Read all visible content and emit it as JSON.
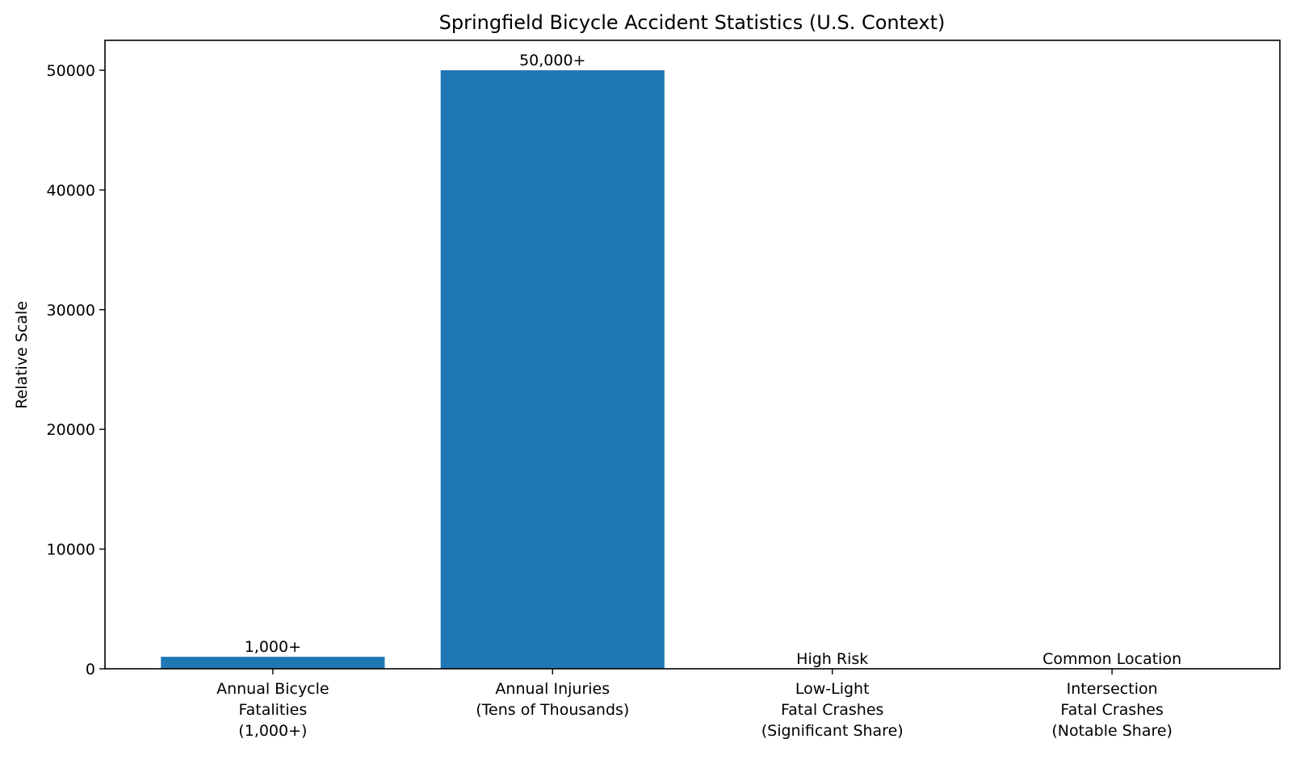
{
  "chart_data": {
    "type": "bar",
    "title": "Springfield Bicycle Accident Statistics (U.S. Context)",
    "xlabel": "",
    "ylabel": "Relative Scale",
    "ylim": [
      0,
      52500
    ],
    "yticks": [
      0,
      10000,
      20000,
      30000,
      40000,
      50000
    ],
    "ytick_labels": [
      "0",
      "10000",
      "20000",
      "30000",
      "40000",
      "50000"
    ],
    "grid": false,
    "legend": null,
    "bar_color": "#1f77b4",
    "categories": [
      "Annual Bicycle\nFatalities\n(1,000+)",
      "Annual Injuries\n(Tens of Thousands)",
      "Low-Light\nFatal Crashes\n(Significant Share)",
      "Intersection\nFatal Crashes\n(Notable Share)"
    ],
    "category_lines": [
      [
        "Annual Bicycle",
        "Fatalities",
        "(1,000+)"
      ],
      [
        "Annual Injuries",
        "(Tens of Thousands)"
      ],
      [
        "Low-Light",
        "Fatal Crashes",
        "(Significant Share)"
      ],
      [
        "Intersection",
        "Fatal Crashes",
        "(Notable Share)"
      ]
    ],
    "values": [
      1000,
      50000,
      0,
      0
    ],
    "bar_labels": [
      "1,000+",
      "50,000+",
      "High Risk",
      "Common Location"
    ]
  }
}
